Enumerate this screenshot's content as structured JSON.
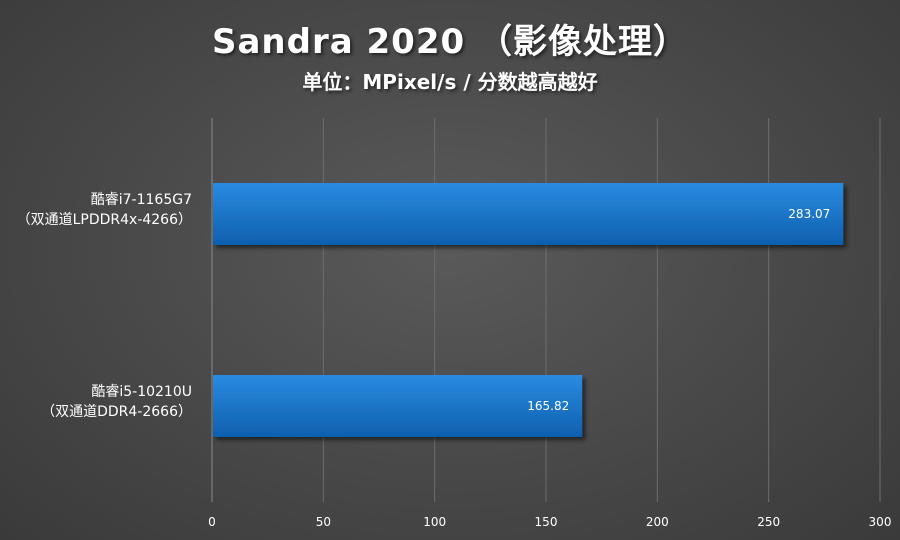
{
  "chart_data": {
    "type": "bar",
    "orientation": "horizontal",
    "title": "Sandra 2020 （影像处理）",
    "subtitle": "单位：MPixel/s / 分数越高越好",
    "categories": [
      [
        "酷睿i7-1165G7",
        "（双通道LPDDR4x-4266）"
      ],
      [
        "酷睿i5-10210U",
        "（双通道DDR4-2666）"
      ]
    ],
    "values": [
      283.07,
      165.82
    ],
    "value_labels": [
      "283.07",
      "165.82"
    ],
    "xlim": [
      0,
      300
    ],
    "xticks": [
      0,
      50,
      100,
      150,
      200,
      250,
      300
    ],
    "grid": true,
    "legend": "none",
    "colors": {
      "bar_top": "#2a8be0",
      "bar_bottom": "#0f5fae",
      "gridline": "#6e6e6e",
      "axis": "#8a8a8a",
      "text": "#ffffff"
    }
  }
}
